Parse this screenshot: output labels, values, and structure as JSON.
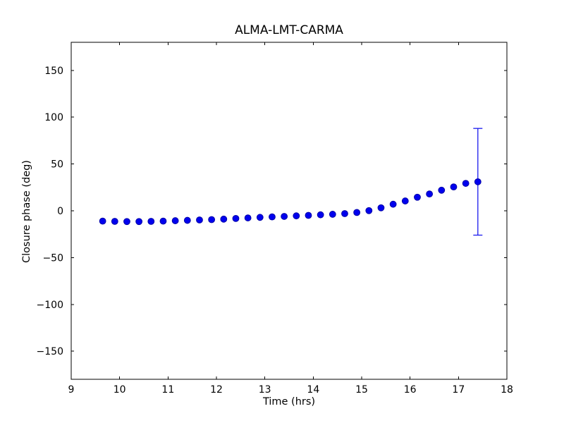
{
  "chart_data": {
    "type": "scatter",
    "title": "ALMA-LMT-CARMA",
    "xlabel": "Time (hrs)",
    "ylabel": "Closure phase (deg)",
    "xlim": [
      9,
      18
    ],
    "ylim": [
      -180,
      180
    ],
    "xticks": [
      9,
      10,
      11,
      12,
      13,
      14,
      15,
      16,
      17,
      18
    ],
    "xtick_labels": [
      "9",
      "10",
      "11",
      "12",
      "13",
      "14",
      "15",
      "16",
      "17",
      "18"
    ],
    "yticks": [
      -150,
      -100,
      -50,
      0,
      50,
      100,
      150
    ],
    "ytick_labels": [
      "−150",
      "−100",
      "−50",
      "0",
      "50",
      "100",
      "150"
    ],
    "grid": false,
    "legend": null,
    "background_color": "#ffffff",
    "frame_color": "#000000",
    "marker": {
      "shape": "circle",
      "fill_color": "#0000ee",
      "edge_color": "#0000a8",
      "radius_px": 4.4
    },
    "errorbar_color": "#1a1aee",
    "series": [
      {
        "name": "closure phase ALMA-LMT-CARMA",
        "x": [
          9.65,
          9.9,
          10.15,
          10.4,
          10.65,
          10.9,
          11.15,
          11.4,
          11.65,
          11.9,
          12.15,
          12.4,
          12.65,
          12.9,
          13.15,
          13.4,
          13.65,
          13.9,
          14.15,
          14.4,
          14.65,
          14.9,
          15.15,
          15.4,
          15.65,
          15.9,
          16.15,
          16.4,
          16.65,
          16.9,
          17.15,
          17.4
        ],
        "y": [
          -11.0,
          -11.3,
          -11.5,
          -11.5,
          -11.3,
          -11.0,
          -10.6,
          -10.2,
          -9.8,
          -9.4,
          -8.9,
          -8.2,
          -7.6,
          -7.0,
          -6.5,
          -6.0,
          -5.4,
          -4.9,
          -4.3,
          -3.7,
          -3.0,
          -1.8,
          0.2,
          3.2,
          7.0,
          10.5,
          14.5,
          18.0,
          22.0,
          25.5,
          29.3,
          31.0
        ]
      }
    ],
    "errorbars": [
      {
        "x": 17.4,
        "y": 31.0,
        "yerr": 57
      }
    ]
  }
}
